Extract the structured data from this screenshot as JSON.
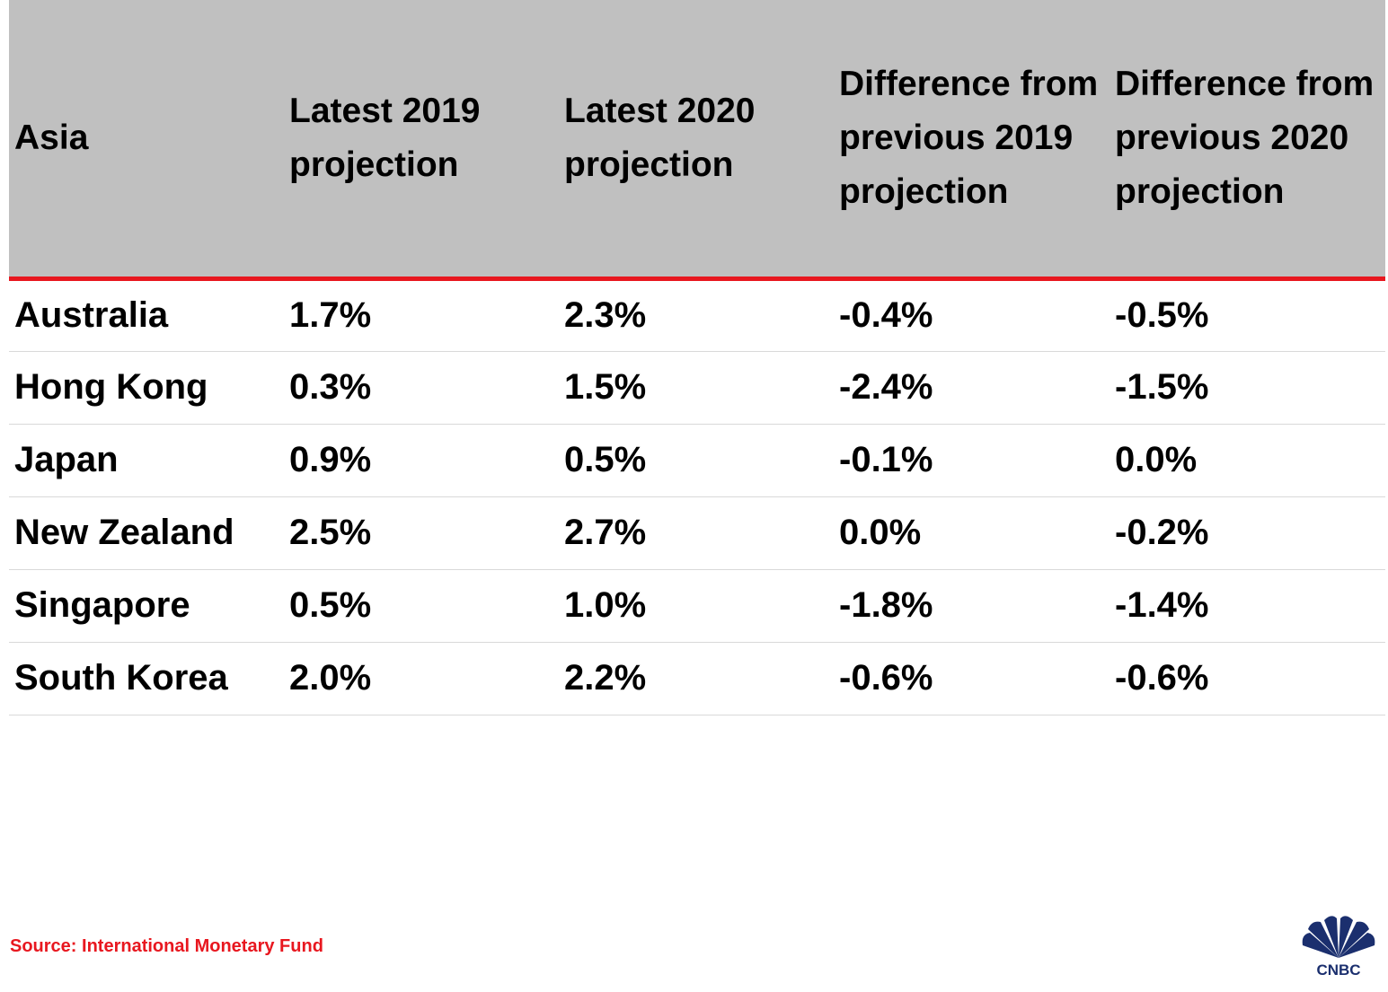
{
  "chart_data": {
    "type": "table",
    "columns": [
      "Asia",
      "Latest 2019 projection",
      "Latest 2020 projection",
      "Difference from previous 2019 projection",
      "Difference from previous 2020 projection"
    ],
    "rows": [
      [
        "Australia",
        "1.7%",
        "2.3%",
        "-0.4%",
        "-0.5%"
      ],
      [
        "Hong Kong",
        "0.3%",
        "1.5%",
        "-2.4%",
        "-1.5%"
      ],
      [
        "Japan",
        "0.9%",
        "0.5%",
        "-0.1%",
        "0.0%"
      ],
      [
        "New Zealand",
        "2.5%",
        "2.7%",
        "0.0%",
        "-0.2%"
      ],
      [
        "Singapore",
        "0.5%",
        "1.0%",
        "-1.8%",
        "-1.4%"
      ],
      [
        "South Korea",
        "2.0%",
        "2.2%",
        "-0.6%",
        "-0.6%"
      ]
    ]
  },
  "source": "Source: International Monetary Fund",
  "logo": {
    "text": "CNBC",
    "icon": "peacock-icon"
  },
  "colors": {
    "header_bg": "#c0c0c0",
    "accent": "#e8171f",
    "logo": "#1b2f6e"
  }
}
